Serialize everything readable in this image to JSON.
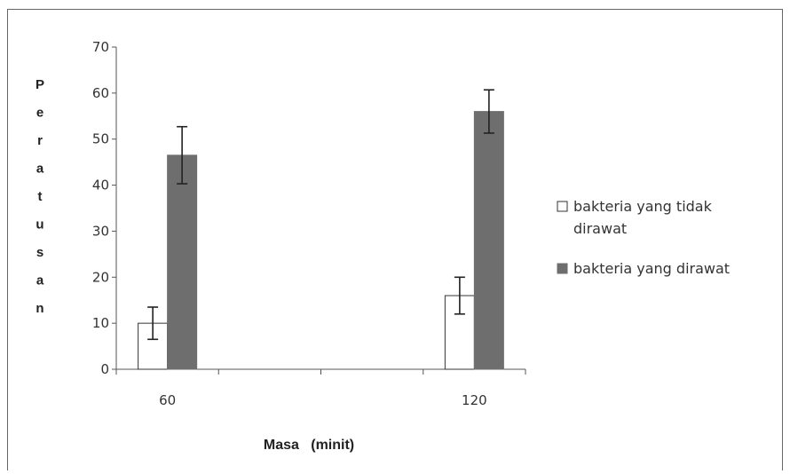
{
  "chart_data": {
    "type": "bar",
    "categories": [
      "60",
      "120"
    ],
    "series": [
      {
        "name": "bakteria yang tidak dirawat",
        "name_lines": [
          "bakteria yang tidak",
          "dirawat"
        ],
        "values": [
          10,
          16
        ],
        "errors": [
          3.5,
          4
        ],
        "color": "#ffffff",
        "stroke": "#333333"
      },
      {
        "name": "bakteria yang dirawat",
        "name_lines": [
          "bakteria yang dirawat"
        ],
        "values": [
          46.5,
          56
        ],
        "errors": [
          6.2,
          4.7
        ],
        "color": "#6e6e6e",
        "stroke": "#6e6e6e"
      }
    ],
    "title": "",
    "xlabel": "Masa   (minit)",
    "ylabel": "Peratusan",
    "ylim": [
      0,
      70
    ],
    "yticks": [
      "0",
      "10",
      "20",
      "30",
      "40",
      "50",
      "60",
      "70"
    ],
    "grid": false,
    "legend_position": "right"
  }
}
